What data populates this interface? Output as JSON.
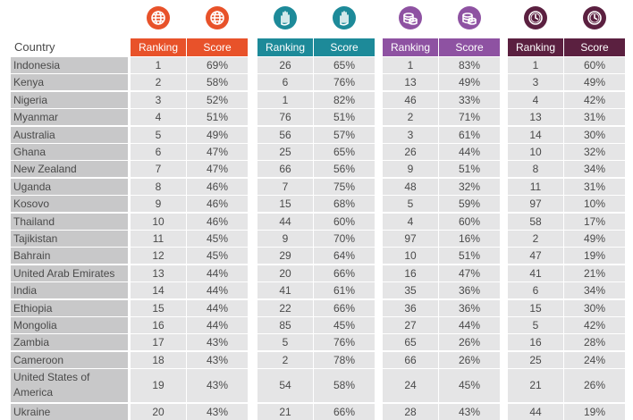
{
  "colors": {
    "g1": "#e8522a",
    "g2": "#1d8a99",
    "g3": "#8e52a2",
    "g4": "#5b2040",
    "name_bg": "#c8c8c9",
    "value_bg": "#e5e5e6"
  },
  "header": {
    "country": "Country",
    "ranking": "Ranking",
    "score": "Score"
  },
  "groups": [
    {
      "icon": "globe-icon",
      "color": "#e8522a"
    },
    {
      "icon": "raised-hand-icon",
      "color": "#1d8a99"
    },
    {
      "icon": "coins-icon",
      "color": "#8e52a2"
    },
    {
      "icon": "clock-icon",
      "color": "#5b2040"
    }
  ],
  "chart_data": {
    "type": "table",
    "columns": [
      "Country",
      "Ranking",
      "Score",
      "Ranking",
      "Score",
      "Ranking",
      "Score",
      "Ranking",
      "Score"
    ],
    "rows": [
      [
        "Indonesia",
        "1",
        "69%",
        "26",
        "65%",
        "1",
        "83%",
        "1",
        "60%"
      ],
      [
        "Kenya",
        "2",
        "58%",
        "6",
        "76%",
        "13",
        "49%",
        "3",
        "49%"
      ],
      [
        "Nigeria",
        "3",
        "52%",
        "1",
        "82%",
        "46",
        "33%",
        "4",
        "42%"
      ],
      [
        "Myanmar",
        "4",
        "51%",
        "76",
        "51%",
        "2",
        "71%",
        "13",
        "31%"
      ],
      [
        "Australia",
        "5",
        "49%",
        "56",
        "57%",
        "3",
        "61%",
        "14",
        "30%"
      ],
      [
        "Ghana",
        "6",
        "47%",
        "25",
        "65%",
        "26",
        "44%",
        "10",
        "32%"
      ],
      [
        "New Zealand",
        "7",
        "47%",
        "66",
        "56%",
        "9",
        "51%",
        "8",
        "34%"
      ],
      [
        "Uganda",
        "8",
        "46%",
        "7",
        "75%",
        "48",
        "32%",
        "11",
        "31%"
      ],
      [
        "Kosovo",
        "9",
        "46%",
        "15",
        "68%",
        "5",
        "59%",
        "97",
        "10%"
      ],
      [
        "Thailand",
        "10",
        "46%",
        "44",
        "60%",
        "4",
        "60%",
        "58",
        "17%"
      ],
      [
        "Tajikistan",
        "11",
        "45%",
        "9",
        "70%",
        "97",
        "16%",
        "2",
        "49%"
      ],
      [
        "Bahrain",
        "12",
        "45%",
        "29",
        "64%",
        "10",
        "51%",
        "47",
        "19%"
      ],
      [
        "United Arab Emirates",
        "13",
        "44%",
        "20",
        "66%",
        "16",
        "47%",
        "41",
        "21%"
      ],
      [
        "India",
        "14",
        "44%",
        "41",
        "61%",
        "35",
        "36%",
        "6",
        "34%"
      ],
      [
        "Ethiopia",
        "15",
        "44%",
        "22",
        "66%",
        "36",
        "36%",
        "15",
        "30%"
      ],
      [
        "Mongolia",
        "16",
        "44%",
        "85",
        "45%",
        "27",
        "44%",
        "5",
        "42%"
      ],
      [
        "Zambia",
        "17",
        "43%",
        "5",
        "76%",
        "65",
        "26%",
        "16",
        "28%"
      ],
      [
        "Cameroon",
        "18",
        "43%",
        "2",
        "78%",
        "66",
        "26%",
        "25",
        "24%"
      ],
      [
        "United States of America",
        "19",
        "43%",
        "54",
        "58%",
        "24",
        "45%",
        "21",
        "26%"
      ],
      [
        "Ukraine",
        "20",
        "43%",
        "21",
        "66%",
        "28",
        "43%",
        "44",
        "19%"
      ]
    ]
  }
}
